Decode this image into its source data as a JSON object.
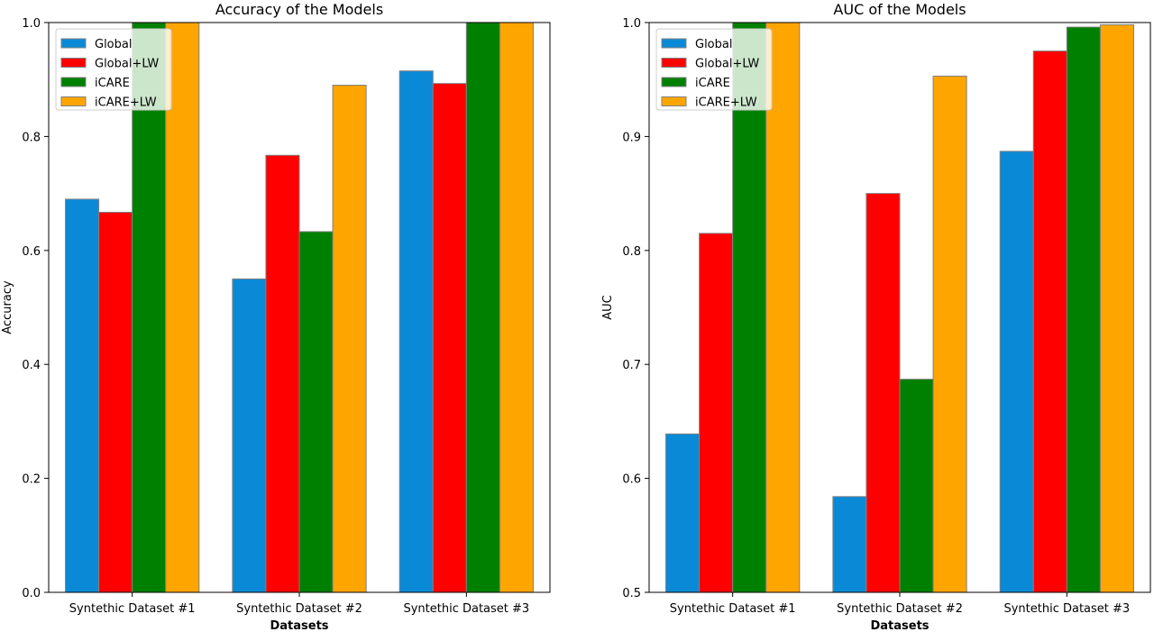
{
  "chart_data": [
    {
      "type": "bar",
      "title": "Accuracy of the Models",
      "xlabel": "Datasets",
      "ylabel": "Accuracy",
      "ylim": [
        0,
        1.0
      ],
      "yticks": [
        "0.0",
        "0.2",
        "0.4",
        "0.6",
        "0.8",
        "1.0"
      ],
      "ytick_values": [
        0,
        0.2,
        0.4,
        0.6,
        0.8,
        1.0
      ],
      "categories": [
        "Syntethic Dataset #1",
        "Syntethic Dataset #2",
        "Syntethic Dataset #3"
      ],
      "legend_position": "top-left",
      "grid": false,
      "series": [
        {
          "name": "Global",
          "color": "#0a8ad6",
          "values": [
            0.69,
            0.55,
            0.915
          ]
        },
        {
          "name": "Global+LW",
          "color": "#ff0000",
          "values": [
            0.667,
            0.767,
            0.893
          ]
        },
        {
          "name": "iCARE",
          "color": "#008000",
          "values": [
            1.0,
            0.633,
            1.0
          ]
        },
        {
          "name": "iCARE+LW",
          "color": "#ffa500",
          "values": [
            1.0,
            0.89,
            1.0
          ]
        }
      ]
    },
    {
      "type": "bar",
      "title": "AUC of the Models",
      "xlabel": "Datasets",
      "ylabel": "AUC",
      "ylim": [
        0.5,
        1.0
      ],
      "yticks": [
        "0.5",
        "0.6",
        "0.7",
        "0.8",
        "0.9",
        "1.0"
      ],
      "ytick_values": [
        0.5,
        0.6,
        0.7,
        0.8,
        0.9,
        1.0
      ],
      "categories": [
        "Syntethic Dataset #1",
        "Syntethic Dataset #2",
        "Syntethic Dataset #3"
      ],
      "legend_position": "top-left",
      "grid": false,
      "series": [
        {
          "name": "Global",
          "color": "#0a8ad6",
          "values": [
            0.639,
            0.584,
            0.887
          ]
        },
        {
          "name": "Global+LW",
          "color": "#ff0000",
          "values": [
            0.815,
            0.85,
            0.975
          ]
        },
        {
          "name": "iCARE",
          "color": "#008000",
          "values": [
            1.0,
            0.687,
            0.996
          ]
        },
        {
          "name": "iCARE+LW",
          "color": "#ffa500",
          "values": [
            1.0,
            0.953,
            0.998
          ]
        }
      ]
    }
  ]
}
